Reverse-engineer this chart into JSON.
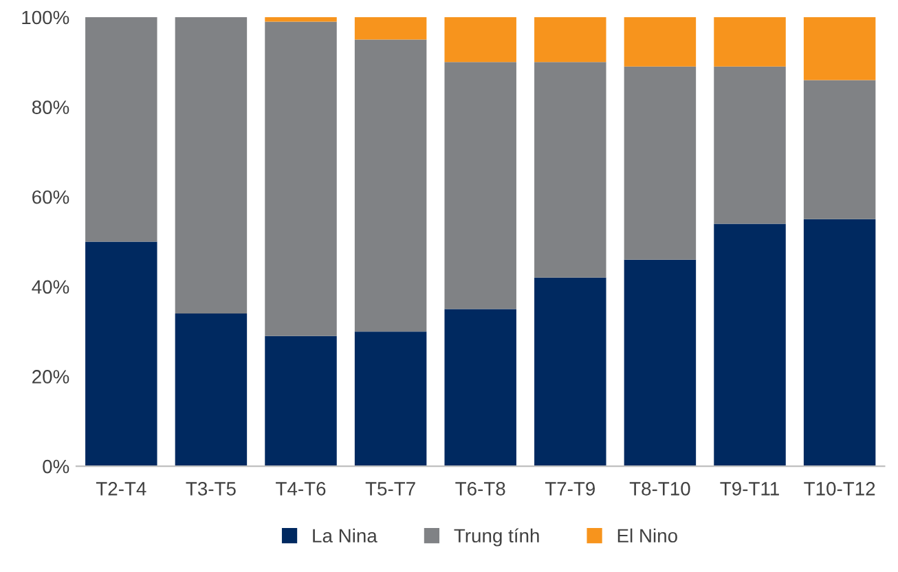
{
  "chart_data": {
    "type": "bar",
    "stacked": true,
    "categories": [
      "T2-T4",
      "T3-T5",
      "T4-T6",
      "T5-T7",
      "T6-T8",
      "T7-T9",
      "T8-T10",
      "T9-T11",
      "T10-T12"
    ],
    "series": [
      {
        "name": "La Nina",
        "color": "#002960",
        "values": [
          50,
          34,
          29,
          30,
          35,
          42,
          46,
          54,
          55
        ]
      },
      {
        "name": "Trung tính",
        "color": "#808285",
        "values": [
          50,
          66,
          70,
          65,
          55,
          48,
          43,
          35,
          31
        ]
      },
      {
        "name": "El Nino",
        "color": "#f7941d",
        "values": [
          0,
          0,
          1,
          5,
          10,
          10,
          11,
          11,
          14
        ]
      }
    ],
    "ylim": [
      0,
      100
    ],
    "yticks": [
      {
        "value": 0,
        "label": "0%"
      },
      {
        "value": 20,
        "label": "20%"
      },
      {
        "value": 40,
        "label": "40%"
      },
      {
        "value": 60,
        "label": "60%"
      },
      {
        "value": 80,
        "label": "80%"
      },
      {
        "value": 100,
        "label": "100%"
      }
    ],
    "grid": false,
    "legend": "bottom"
  }
}
